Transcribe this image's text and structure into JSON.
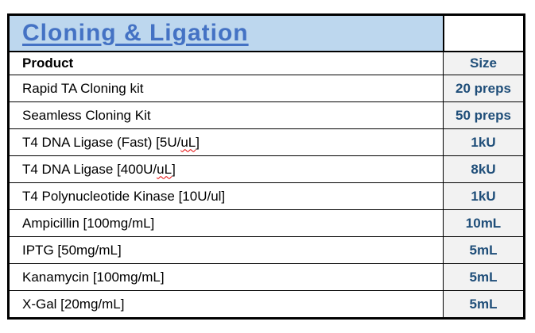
{
  "table": {
    "title": "Cloning & Ligation",
    "columns": {
      "product": "Product",
      "size": "Size"
    },
    "rows": [
      {
        "pre": "Rapid TA Cloning kit",
        "misspelled": "",
        "post": "",
        "size": "20 preps"
      },
      {
        "pre": "Seamless Cloning Kit",
        "misspelled": "",
        "post": "",
        "size": "50 preps"
      },
      {
        "pre": "T4 DNA Ligase (Fast) [5U/",
        "misspelled": "uL",
        "post": "]",
        "size": "1kU"
      },
      {
        "pre": "T4 DNA Ligase [400U/",
        "misspelled": "uL",
        "post": "]",
        "size": "8kU"
      },
      {
        "pre": "T4 Polynucleotide Kinase [10U/ul]",
        "misspelled": "",
        "post": "",
        "size": "1kU"
      },
      {
        "pre": "Ampicillin [100mg/mL]",
        "misspelled": "",
        "post": "",
        "size": "10mL"
      },
      {
        "pre": "IPTG [50mg/mL]",
        "misspelled": "",
        "post": "",
        "size": "5mL"
      },
      {
        "pre": "Kanamycin [100mg/mL]",
        "misspelled": "",
        "post": "",
        "size": "5mL"
      },
      {
        "pre": "X-Gal [20mg/mL]",
        "misspelled": "",
        "post": "",
        "size": "5mL"
      }
    ],
    "colors": {
      "title_text": "#4472C4",
      "title_background": "#BDD7EE",
      "size_text": "#1F4E79",
      "size_background": "#F2F2F2",
      "border": "#000000",
      "spellcheck_underline": "#E60000"
    }
  }
}
